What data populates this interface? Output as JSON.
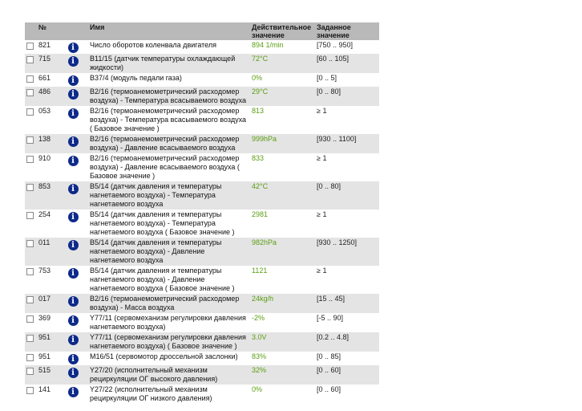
{
  "header": {
    "num": "№",
    "name": "Имя",
    "actual": "Действительное значение",
    "setpoint": "Заданное значение"
  },
  "rows": [
    {
      "num": "821",
      "name": "Число оборотов коленвала двигателя",
      "actual": "894 1/min",
      "set": "[750 .. 950]"
    },
    {
      "num": "715",
      "name": "B11/15 (датчик температуры охлаждающей жидкости)",
      "actual": "72°C",
      "set": "[60 .. 105]"
    },
    {
      "num": "661",
      "name": "B37/4 (модуль педали газа)",
      "actual": "0%",
      "set": "[0 .. 5]"
    },
    {
      "num": "486",
      "name": "B2/16 (термоанемометрический расходомер воздуха) - Температура всасываемого воздуха",
      "actual": "29°C",
      "set": "[0 .. 80]"
    },
    {
      "num": "053",
      "name": "B2/16 (термоанемометрический расходомер воздуха) - Температура всасываемого воздуха ( Базовое значение )",
      "actual": "813",
      "set": "≥ 1"
    },
    {
      "num": "138",
      "name": "B2/16 (термоанемометрический расходомер воздуха) - Давление всасываемого воздуха",
      "actual": "999hPa",
      "set": "[930 .. 1100]"
    },
    {
      "num": "910",
      "name": "B2/16 (термоанемометрический расходомер воздуха) - Давление всасываемого воздуха ( Базовое значение )",
      "actual": "833",
      "set": "≥ 1"
    },
    {
      "num": "853",
      "name": "B5/14 (датчик давления и температуры нагнетаемого воздуха) - Температура нагнетаемого воздуха",
      "actual": "42°C",
      "set": "[0 .. 80]"
    },
    {
      "num": "254",
      "name": "B5/14 (датчик давления и температуры нагнетаемого воздуха) - Температура нагнетаемого воздуха ( Базовое значение )",
      "actual": "2981",
      "set": "≥ 1"
    },
    {
      "num": "011",
      "name": "B5/14 (датчик давления и температуры нагнетаемого воздуха) - Давление нагнетаемого воздуха",
      "actual": "982hPa",
      "set": "[930 .. 1250]"
    },
    {
      "num": "753",
      "name": "B5/14 (датчик давления и температуры нагнетаемого воздуха) - Давление нагнетаемого воздуха ( Базовое значение )",
      "actual": "1121",
      "set": "≥ 1"
    },
    {
      "num": "017",
      "name": "B2/16 (термоанемометрический расходомер воздуха) - Масса воздуха",
      "actual": "24kg/h",
      "set": "[15 .. 45]"
    },
    {
      "num": "369",
      "name": "Y77/11 (сервомеханизм регулировки давления нагнетаемого воздуха)",
      "actual": "-2%",
      "set": "[-5 .. 90]"
    },
    {
      "num": "951",
      "name": "Y77/11 (сервомеханизм регулировки давления нагнетаемого воздуха) ( Базовое значение )",
      "actual": "3.0V",
      "set": "[0.2 .. 4.8]"
    },
    {
      "num": "951",
      "name": "M16/51 (сервомотор дроссельной заслонки)",
      "actual": "83%",
      "set": "[0 .. 85]"
    },
    {
      "num": "515",
      "name": "Y27/20 (исполнительный механизм рециркуляции ОГ высокого давления)",
      "actual": "32%",
      "set": "[0 .. 60]"
    },
    {
      "num": "141",
      "name": "Y27/22 (исполнительный механизм рециркуляции ОГ низкого давления)",
      "actual": "0%",
      "set": "[0 .. 60]"
    }
  ],
  "icons": {
    "info": "info-icon",
    "info_glyph": "i"
  },
  "colors": {
    "actual_value": "#5a9e12",
    "header_bg": "#b9b9b9",
    "row_alt_bg": "#e4e4e4",
    "info_icon": "#0d2a8a"
  }
}
